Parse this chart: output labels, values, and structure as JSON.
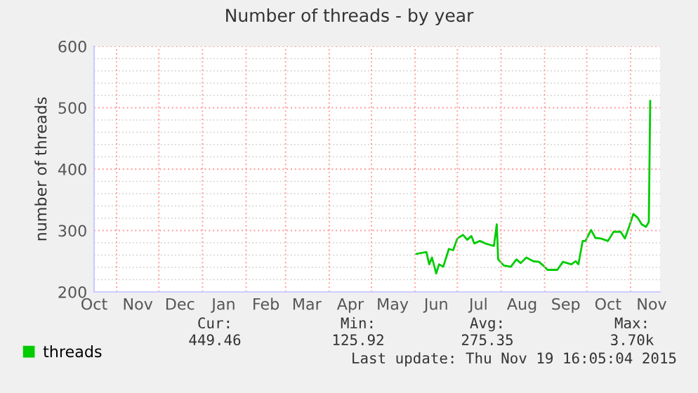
{
  "chart_data": {
    "type": "line",
    "title": "Number of threads - by year",
    "ylabel": "number of threads",
    "x": [
      "2015-06-02",
      "2015-06-09",
      "2015-06-11",
      "2015-06-13",
      "2015-06-16",
      "2015-06-18",
      "2015-06-21",
      "2015-06-25",
      "2015-06-28",
      "2015-07-01",
      "2015-07-05",
      "2015-07-08",
      "2015-07-11",
      "2015-07-13",
      "2015-07-17",
      "2015-07-22",
      "2015-07-27",
      "2015-07-29",
      "2015-07-30",
      "2015-08-03",
      "2015-08-08",
      "2015-08-12",
      "2015-08-15",
      "2015-08-19",
      "2015-08-24",
      "2015-08-28",
      "2015-09-01",
      "2015-09-03",
      "2015-09-10",
      "2015-09-14",
      "2015-09-20",
      "2015-09-23",
      "2015-09-25",
      "2015-09-28",
      "2015-09-30",
      "2015-10-04",
      "2015-10-07",
      "2015-10-11",
      "2015-10-16",
      "2015-10-20",
      "2015-10-25",
      "2015-10-28",
      "2015-10-31",
      "2015-11-03",
      "2015-11-06",
      "2015-11-09",
      "2015-11-12",
      "2015-11-14",
      "2015-11-15"
    ],
    "series": [
      {
        "name": "threads",
        "color": "#00cc00",
        "values": [
          262,
          265,
          245,
          256,
          230,
          245,
          241,
          270,
          268,
          287,
          293,
          285,
          291,
          279,
          283,
          278,
          275,
          310,
          253,
          243,
          241,
          253,
          247,
          256,
          250,
          249,
          241,
          236,
          236,
          249,
          245,
          250,
          245,
          283,
          283,
          301,
          288,
          287,
          283,
          298,
          298,
          287,
          306,
          327,
          321,
          310,
          306,
          314,
          511
        ]
      }
    ],
    "xlim": [
      "2014-10-16",
      "2015-11-22"
    ],
    "xticks": [
      {
        "value": "2014-10-16",
        "label": "Oct"
      },
      {
        "value": "2014-11-01",
        "label": null
      },
      {
        "value": "2014-11-16",
        "label": "Nov"
      },
      {
        "value": "2014-12-01",
        "label": null
      },
      {
        "value": "2014-12-16",
        "label": "Dec"
      },
      {
        "value": "2015-01-01",
        "label": null
      },
      {
        "value": "2015-01-16",
        "label": "Jan"
      },
      {
        "value": "2015-02-01",
        "label": null
      },
      {
        "value": "2015-02-15",
        "label": "Feb"
      },
      {
        "value": "2015-03-01",
        "label": null
      },
      {
        "value": "2015-03-16",
        "label": "Mar"
      },
      {
        "value": "2015-04-01",
        "label": null
      },
      {
        "value": "2015-04-16",
        "label": "Apr"
      },
      {
        "value": "2015-05-01",
        "label": null
      },
      {
        "value": "2015-05-16",
        "label": "May"
      },
      {
        "value": "2015-06-01",
        "label": null
      },
      {
        "value": "2015-06-16",
        "label": "Jun"
      },
      {
        "value": "2015-07-01",
        "label": null
      },
      {
        "value": "2015-07-16",
        "label": "Jul"
      },
      {
        "value": "2015-08-01",
        "label": null
      },
      {
        "value": "2015-08-16",
        "label": "Aug"
      },
      {
        "value": "2015-09-01",
        "label": null
      },
      {
        "value": "2015-09-16",
        "label": "Sep"
      },
      {
        "value": "2015-10-01",
        "label": null
      },
      {
        "value": "2015-10-16",
        "label": "Oct"
      },
      {
        "value": "2015-11-01",
        "label": null
      },
      {
        "value": "2015-11-16",
        "label": "Nov"
      }
    ],
    "ylim": [
      200,
      600
    ],
    "yticks": [
      200,
      300,
      400,
      500,
      600
    ],
    "grid": true,
    "legend": "bottom left",
    "marker": "none",
    "line_style": "solid",
    "annotations": [
      "Cur:",
      "449.46",
      "Min:",
      "125.92",
      "Avg:",
      "275.35",
      "Max:",
      "3.70k",
      "Last update: Thu Nov 19 16:05:04 2015"
    ]
  }
}
